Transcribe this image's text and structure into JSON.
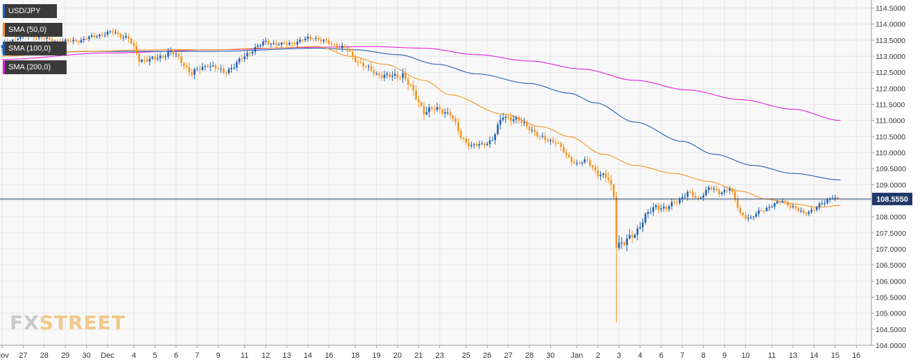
{
  "legend": {
    "symbol": "USD/JPY",
    "sma50": "SMA (50,0)",
    "sma100": "SMA (100,0)",
    "sma200": "SMA (200,0)"
  },
  "logo": {
    "fx": "FX",
    "street": "STREET"
  },
  "colors": {
    "up": "#1f5fb4",
    "down": "#f7931e",
    "sma50": "#f7931e",
    "sma100": "#1f5fb4",
    "sma200": "#e020e0",
    "price_line": "#1f3a68",
    "grid": "#e6e6e6",
    "background": "#f8f8f8"
  },
  "chart_data": {
    "type": "candlestick",
    "symbol": "USD/JPY",
    "ylim": [
      104.0,
      114.75
    ],
    "y_ticks": [
      "114.5000",
      "114.0000",
      "113.5000",
      "113.0000",
      "112.5000",
      "112.0000",
      "111.5000",
      "111.0000",
      "110.5000",
      "110.0000",
      "109.5000",
      "109.0000",
      "108.5000",
      "108.0000",
      "107.5000",
      "107.0000",
      "106.5000",
      "106.0000",
      "105.5000",
      "105.0000",
      "104.5000",
      "104.0000"
    ],
    "x_ticks": [
      {
        "label": "Nov",
        "i": 0
      },
      {
        "label": "27",
        "i": 8
      },
      {
        "label": "28",
        "i": 16
      },
      {
        "label": "29",
        "i": 24
      },
      {
        "label": "30",
        "i": 32
      },
      {
        "label": "Dec",
        "i": 40
      },
      {
        "label": "4",
        "i": 50
      },
      {
        "label": "5",
        "i": 58
      },
      {
        "label": "6",
        "i": 66
      },
      {
        "label": "7",
        "i": 74
      },
      {
        "label": "9",
        "i": 82
      },
      {
        "label": "11",
        "i": 92
      },
      {
        "label": "12",
        "i": 100
      },
      {
        "label": "13",
        "i": 108
      },
      {
        "label": "14",
        "i": 116
      },
      {
        "label": "16",
        "i": 124
      },
      {
        "label": "18",
        "i": 134
      },
      {
        "label": "19",
        "i": 142
      },
      {
        "label": "20",
        "i": 150
      },
      {
        "label": "21",
        "i": 158
      },
      {
        "label": "23",
        "i": 166
      },
      {
        "label": "25",
        "i": 176
      },
      {
        "label": "26",
        "i": 184
      },
      {
        "label": "27",
        "i": 192
      },
      {
        "label": "28",
        "i": 200
      },
      {
        "label": "30",
        "i": 208
      },
      {
        "label": "Jan",
        "i": 218
      },
      {
        "label": "2",
        "i": 226
      },
      {
        "label": "3",
        "i": 234
      },
      {
        "label": "4",
        "i": 242
      },
      {
        "label": "6",
        "i": 250
      },
      {
        "label": "7",
        "i": 258
      },
      {
        "label": "8",
        "i": 266
      },
      {
        "label": "9",
        "i": 274
      },
      {
        "label": "10",
        "i": 282
      },
      {
        "label": "11",
        "i": 292
      },
      {
        "label": "13",
        "i": 300
      },
      {
        "label": "14",
        "i": 308
      },
      {
        "label": "15",
        "i": 316
      },
      {
        "label": "16",
        "i": 324
      }
    ],
    "anchors": [
      {
        "i": 0,
        "p": 113.3,
        "v": 0.15
      },
      {
        "i": 6,
        "p": 113.6,
        "v": 0.15
      },
      {
        "i": 12,
        "p": 113.65,
        "v": 0.15
      },
      {
        "i": 18,
        "p": 113.5,
        "v": 0.12
      },
      {
        "i": 24,
        "p": 113.45,
        "v": 0.12
      },
      {
        "i": 30,
        "p": 113.5,
        "v": 0.1
      },
      {
        "i": 36,
        "p": 113.65,
        "v": 0.1
      },
      {
        "i": 42,
        "p": 113.75,
        "v": 0.12
      },
      {
        "i": 48,
        "p": 113.55,
        "v": 0.15
      },
      {
        "i": 52,
        "p": 112.9,
        "v": 0.18
      },
      {
        "i": 58,
        "p": 112.9,
        "v": 0.15
      },
      {
        "i": 64,
        "p": 113.15,
        "v": 0.15
      },
      {
        "i": 68,
        "p": 112.85,
        "v": 0.18
      },
      {
        "i": 72,
        "p": 112.45,
        "v": 0.18
      },
      {
        "i": 78,
        "p": 112.75,
        "v": 0.15
      },
      {
        "i": 84,
        "p": 112.5,
        "v": 0.15
      },
      {
        "i": 88,
        "p": 112.7,
        "v": 0.15
      },
      {
        "i": 94,
        "p": 113.15,
        "v": 0.15
      },
      {
        "i": 100,
        "p": 113.45,
        "v": 0.12
      },
      {
        "i": 106,
        "p": 113.35,
        "v": 0.12
      },
      {
        "i": 112,
        "p": 113.45,
        "v": 0.12
      },
      {
        "i": 118,
        "p": 113.6,
        "v": 0.12
      },
      {
        "i": 124,
        "p": 113.4,
        "v": 0.12
      },
      {
        "i": 130,
        "p": 113.25,
        "v": 0.15
      },
      {
        "i": 134,
        "p": 112.9,
        "v": 0.15
      },
      {
        "i": 138,
        "p": 112.65,
        "v": 0.15
      },
      {
        "i": 142,
        "p": 112.45,
        "v": 0.15
      },
      {
        "i": 148,
        "p": 112.35,
        "v": 0.2
      },
      {
        "i": 152,
        "p": 112.45,
        "v": 0.22
      },
      {
        "i": 156,
        "p": 111.85,
        "v": 0.22
      },
      {
        "i": 160,
        "p": 111.3,
        "v": 0.22
      },
      {
        "i": 166,
        "p": 111.35,
        "v": 0.18
      },
      {
        "i": 170,
        "p": 111.2,
        "v": 0.18
      },
      {
        "i": 174,
        "p": 110.5,
        "v": 0.15
      },
      {
        "i": 178,
        "p": 110.2,
        "v": 0.15
      },
      {
        "i": 182,
        "p": 110.25,
        "v": 0.12
      },
      {
        "i": 186,
        "p": 110.4,
        "v": 0.15
      },
      {
        "i": 190,
        "p": 111.15,
        "v": 0.22
      },
      {
        "i": 194,
        "p": 111.05,
        "v": 0.18
      },
      {
        "i": 200,
        "p": 110.8,
        "v": 0.18
      },
      {
        "i": 204,
        "p": 110.45,
        "v": 0.15
      },
      {
        "i": 210,
        "p": 110.35,
        "v": 0.15
      },
      {
        "i": 214,
        "p": 109.9,
        "v": 0.15
      },
      {
        "i": 218,
        "p": 109.65,
        "v": 0.12
      },
      {
        "i": 222,
        "p": 109.75,
        "v": 0.12
      },
      {
        "i": 226,
        "p": 109.35,
        "v": 0.18
      },
      {
        "i": 230,
        "p": 109.15,
        "v": 0.22
      },
      {
        "i": 232,
        "p": 108.7,
        "v": 0.3
      },
      {
        "i": 233,
        "p": 107.2,
        "v": 0.3
      },
      {
        "i": 236,
        "p": 107.15,
        "v": 0.25
      },
      {
        "i": 240,
        "p": 107.5,
        "v": 0.22
      },
      {
        "i": 244,
        "p": 108.0,
        "v": 0.2
      },
      {
        "i": 248,
        "p": 108.35,
        "v": 0.18
      },
      {
        "i": 252,
        "p": 108.25,
        "v": 0.15
      },
      {
        "i": 256,
        "p": 108.5,
        "v": 0.15
      },
      {
        "i": 260,
        "p": 108.75,
        "v": 0.15
      },
      {
        "i": 264,
        "p": 108.55,
        "v": 0.12
      },
      {
        "i": 268,
        "p": 108.9,
        "v": 0.12
      },
      {
        "i": 272,
        "p": 108.75,
        "v": 0.12
      },
      {
        "i": 276,
        "p": 108.9,
        "v": 0.15
      },
      {
        "i": 280,
        "p": 108.1,
        "v": 0.15
      },
      {
        "i": 284,
        "p": 107.95,
        "v": 0.12
      },
      {
        "i": 288,
        "p": 108.2,
        "v": 0.12
      },
      {
        "i": 292,
        "p": 108.35,
        "v": 0.1
      },
      {
        "i": 296,
        "p": 108.5,
        "v": 0.1
      },
      {
        "i": 300,
        "p": 108.3,
        "v": 0.12
      },
      {
        "i": 304,
        "p": 108.1,
        "v": 0.1
      },
      {
        "i": 308,
        "p": 108.25,
        "v": 0.1
      },
      {
        "i": 312,
        "p": 108.45,
        "v": 0.12
      },
      {
        "i": 315,
        "p": 108.65,
        "v": 0.12
      },
      {
        "i": 317,
        "p": 108.56,
        "v": 0.08
      }
    ],
    "spike": {
      "i": 233,
      "low": 104.72
    },
    "sma50": [
      [
        0,
        113.0
      ],
      [
        30,
        113.15
      ],
      [
        60,
        113.2
      ],
      [
        80,
        113.2
      ],
      [
        100,
        113.25
      ],
      [
        120,
        113.3
      ],
      [
        132,
        113.0
      ],
      [
        145,
        112.75
      ],
      [
        160,
        112.25
      ],
      [
        170,
        111.8
      ],
      [
        190,
        111.2
      ],
      [
        205,
        110.8
      ],
      [
        215,
        110.5
      ],
      [
        228,
        109.95
      ],
      [
        240,
        109.6
      ],
      [
        255,
        109.35
      ],
      [
        268,
        109.1
      ],
      [
        280,
        108.8
      ],
      [
        290,
        108.55
      ],
      [
        300,
        108.4
      ],
      [
        310,
        108.3
      ],
      [
        318,
        108.35
      ]
    ],
    "sma100": [
      [
        0,
        113.1
      ],
      [
        40,
        113.15
      ],
      [
        80,
        113.15
      ],
      [
        120,
        113.25
      ],
      [
        134,
        113.2
      ],
      [
        150,
        113.05
      ],
      [
        165,
        112.75
      ],
      [
        180,
        112.45
      ],
      [
        200,
        112.15
      ],
      [
        215,
        111.85
      ],
      [
        225,
        111.55
      ],
      [
        240,
        110.95
      ],
      [
        258,
        110.35
      ],
      [
        270,
        109.95
      ],
      [
        285,
        109.6
      ],
      [
        300,
        109.35
      ],
      [
        318,
        109.15
      ]
    ],
    "sma200": [
      [
        0,
        112.9
      ],
      [
        40,
        113.1
      ],
      [
        80,
        113.2
      ],
      [
        120,
        113.28
      ],
      [
        140,
        113.3
      ],
      [
        160,
        113.25
      ],
      [
        180,
        113.05
      ],
      [
        200,
        112.85
      ],
      [
        220,
        112.6
      ],
      [
        240,
        112.25
      ],
      [
        260,
        111.95
      ],
      [
        280,
        111.65
      ],
      [
        300,
        111.35
      ],
      [
        318,
        111.0
      ]
    ],
    "current_price": 108.555,
    "current_price_label": "108.5550"
  }
}
